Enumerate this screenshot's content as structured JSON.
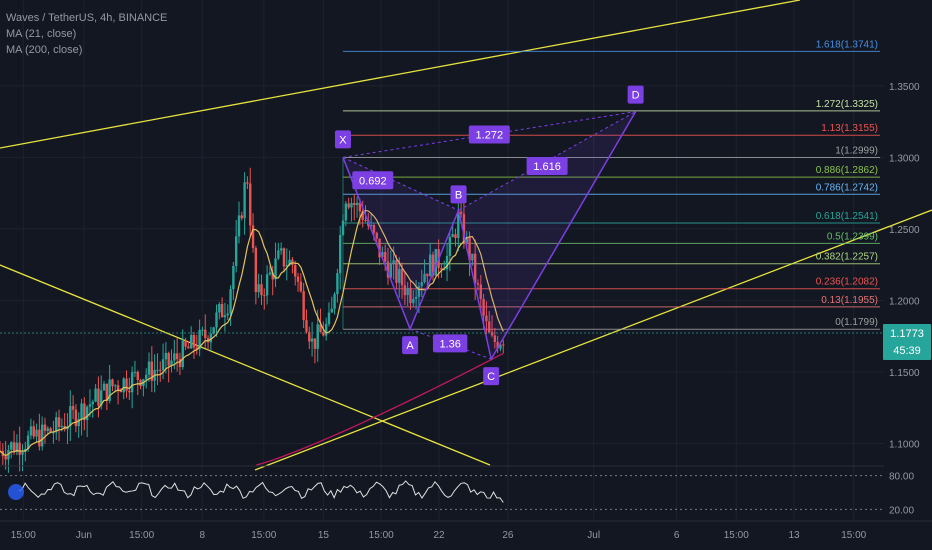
{
  "header": {
    "symbol_line": "Waves / TetherUS, 4h, BINANCE",
    "ma_short": "MA (21, close)",
    "ma_long": "MA (200, close)"
  },
  "price_badge": {
    "price": "1.1773",
    "countdown": "45:39",
    "color": "#26a69a"
  },
  "colors": {
    "background": "#131722",
    "bull_candle": "#26a69a",
    "bear_candle": "#ef5350",
    "pattern": "#7b3fe4",
    "trendline": "#e6e33f",
    "ma_short": "#e5c45a",
    "ma_long": "#c2185b",
    "rsi_line": "#e0e0e0"
  },
  "chart_data": {
    "type": "line",
    "title": "Waves / TetherUS, 4h, BINANCE",
    "y_axis": {
      "ticks": [
        "1.3500",
        "1.3000",
        "1.2500",
        "1.2000",
        "1.1500",
        "1.1000"
      ],
      "tick_values": [
        1.35,
        1.3,
        1.25,
        1.2,
        1.15,
        1.1
      ],
      "range": [
        1.085,
        1.41
      ]
    },
    "x_axis": {
      "ticks": [
        "15:00",
        "Jun",
        "15:00",
        "8",
        "15:00",
        "15",
        "15:00",
        "22",
        "26",
        "Jul",
        "6",
        "15:00",
        "13",
        "15:00"
      ],
      "tick_pos": [
        0.025,
        0.09,
        0.152,
        0.217,
        0.283,
        0.347,
        0.409,
        0.471,
        0.545,
        0.637,
        0.726,
        0.79,
        0.852,
        0.916
      ]
    },
    "fib_levels": [
      {
        "label": "1.618(1.3741)",
        "value": 1.3741,
        "color": "#4a90e2"
      },
      {
        "label": "1.272(1.3325)",
        "value": 1.3325,
        "color": "#c5e1a5"
      },
      {
        "label": "1.13(1.3155)",
        "value": 1.3155,
        "color": "#ef5350"
      },
      {
        "label": "1(1.2999)",
        "value": 1.2999,
        "color": "#9e9e9e"
      },
      {
        "label": "0.886(1.2862)",
        "value": 1.2862,
        "color": "#8bc34a"
      },
      {
        "label": "0.786(1.2742)",
        "value": 1.2742,
        "color": "#64b5f6"
      },
      {
        "label": "0.618(1.2541)",
        "value": 1.2541,
        "color": "#26a69a"
      },
      {
        "label": "0.5(1.2399)",
        "value": 1.2399,
        "color": "#66bb6a"
      },
      {
        "label": "0.382(1.2257)",
        "value": 1.2257,
        "color": "#aed581"
      },
      {
        "label": "0.236(1.2082)",
        "value": 1.2082,
        "color": "#ef5350"
      },
      {
        "label": "0.13(1.1955)",
        "value": 1.1955,
        "color": "#e57373"
      },
      {
        "label": "0(1.1799)",
        "value": 1.1799,
        "color": "#9e9e9e"
      }
    ],
    "harmonic": {
      "points": [
        {
          "label": "X",
          "t": 0.368,
          "price": 1.3
        },
        {
          "label": "A",
          "t": 0.44,
          "price": 1.18
        },
        {
          "label": "B",
          "t": 0.492,
          "price": 1.263
        },
        {
          "label": "C",
          "t": 0.527,
          "price": 1.159
        },
        {
          "label": "D",
          "t": 0.682,
          "price": 1.332
        }
      ],
      "ratios": [
        {
          "label": "0.692",
          "t": 0.4,
          "price": 1.284
        },
        {
          "label": "1.36",
          "t": 0.483,
          "price": 1.17
        },
        {
          "label": "1.272",
          "t": 0.525,
          "price": 1.316
        },
        {
          "label": "1.616",
          "t": 0.587,
          "price": 1.294
        }
      ]
    },
    "rsi_panel": {
      "ticks": [
        "80.00",
        "20.00"
      ],
      "tick_values": [
        80,
        20
      ]
    }
  }
}
